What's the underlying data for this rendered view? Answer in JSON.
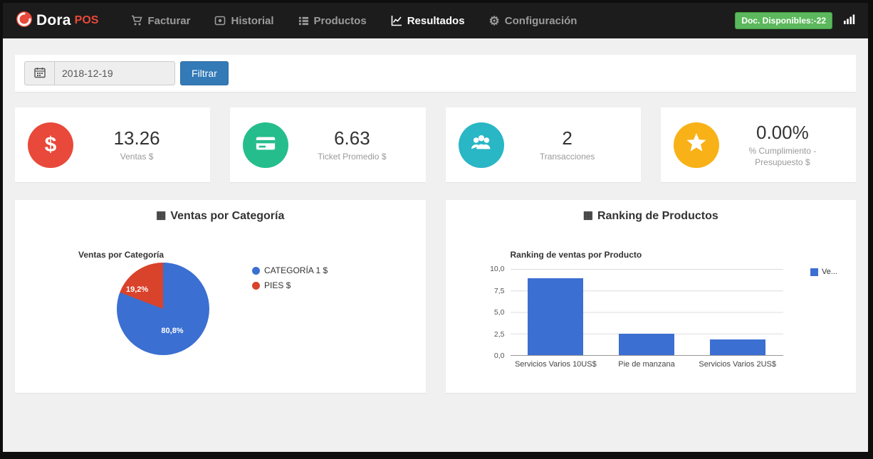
{
  "navbar": {
    "brand": {
      "name_primary": "Dora",
      "name_secondary": "POS"
    },
    "items": [
      {
        "label": "Facturar",
        "active": false
      },
      {
        "label": "Historial",
        "active": false
      },
      {
        "label": "Productos",
        "active": false
      },
      {
        "label": "Resultados",
        "active": true
      },
      {
        "label": "Configuración",
        "active": false
      }
    ],
    "docs_badge": "Doc. Disponibles:-22"
  },
  "filter": {
    "date_value": "2018-12-19",
    "button_label": "Filtrar"
  },
  "stats": [
    {
      "value": "13.26",
      "label": "Ventas $",
      "color": "#e8493a"
    },
    {
      "value": "6.63",
      "label": "Ticket Promedio $",
      "color": "#26bd8c"
    },
    {
      "value": "2",
      "label": "Transacciones",
      "color": "#29b6c5"
    },
    {
      "value": "0.00%",
      "label": "% Cumplimiento - Presupuesto $",
      "color": "#f8b117"
    }
  ],
  "panels": {
    "pie": {
      "header": "Ventas por Categoría"
    },
    "bar": {
      "header": "Ranking de Productos"
    }
  },
  "icons": {
    "gear_glyph": "⚙",
    "grid_glyph": "▦"
  },
  "chart_data": [
    {
      "type": "pie",
      "title": "Ventas por Categoría",
      "slices": [
        {
          "label": "CATEGORÍA 1 $",
          "value": 80.8,
          "display": "80,8%",
          "color": "#3b6fd1"
        },
        {
          "label": "PIES $",
          "value": 19.2,
          "display": "19,2%",
          "color": "#d9432b"
        }
      ],
      "legend_position": "right"
    },
    {
      "type": "bar",
      "title": "Ranking de ventas por Producto",
      "categories": [
        "Servicios Varios 10US$",
        "Pie de manzana",
        "Servicios Varios 2US$"
      ],
      "values": [
        8.9,
        2.5,
        1.8
      ],
      "ylim": [
        0,
        10
      ],
      "yticks": [
        "10,0",
        "7,5",
        "5,0",
        "2,5",
        "0,0"
      ],
      "legend": "Ve...",
      "bar_color": "#3b6fd1",
      "grid": true,
      "legend_position": "top-right"
    }
  ]
}
